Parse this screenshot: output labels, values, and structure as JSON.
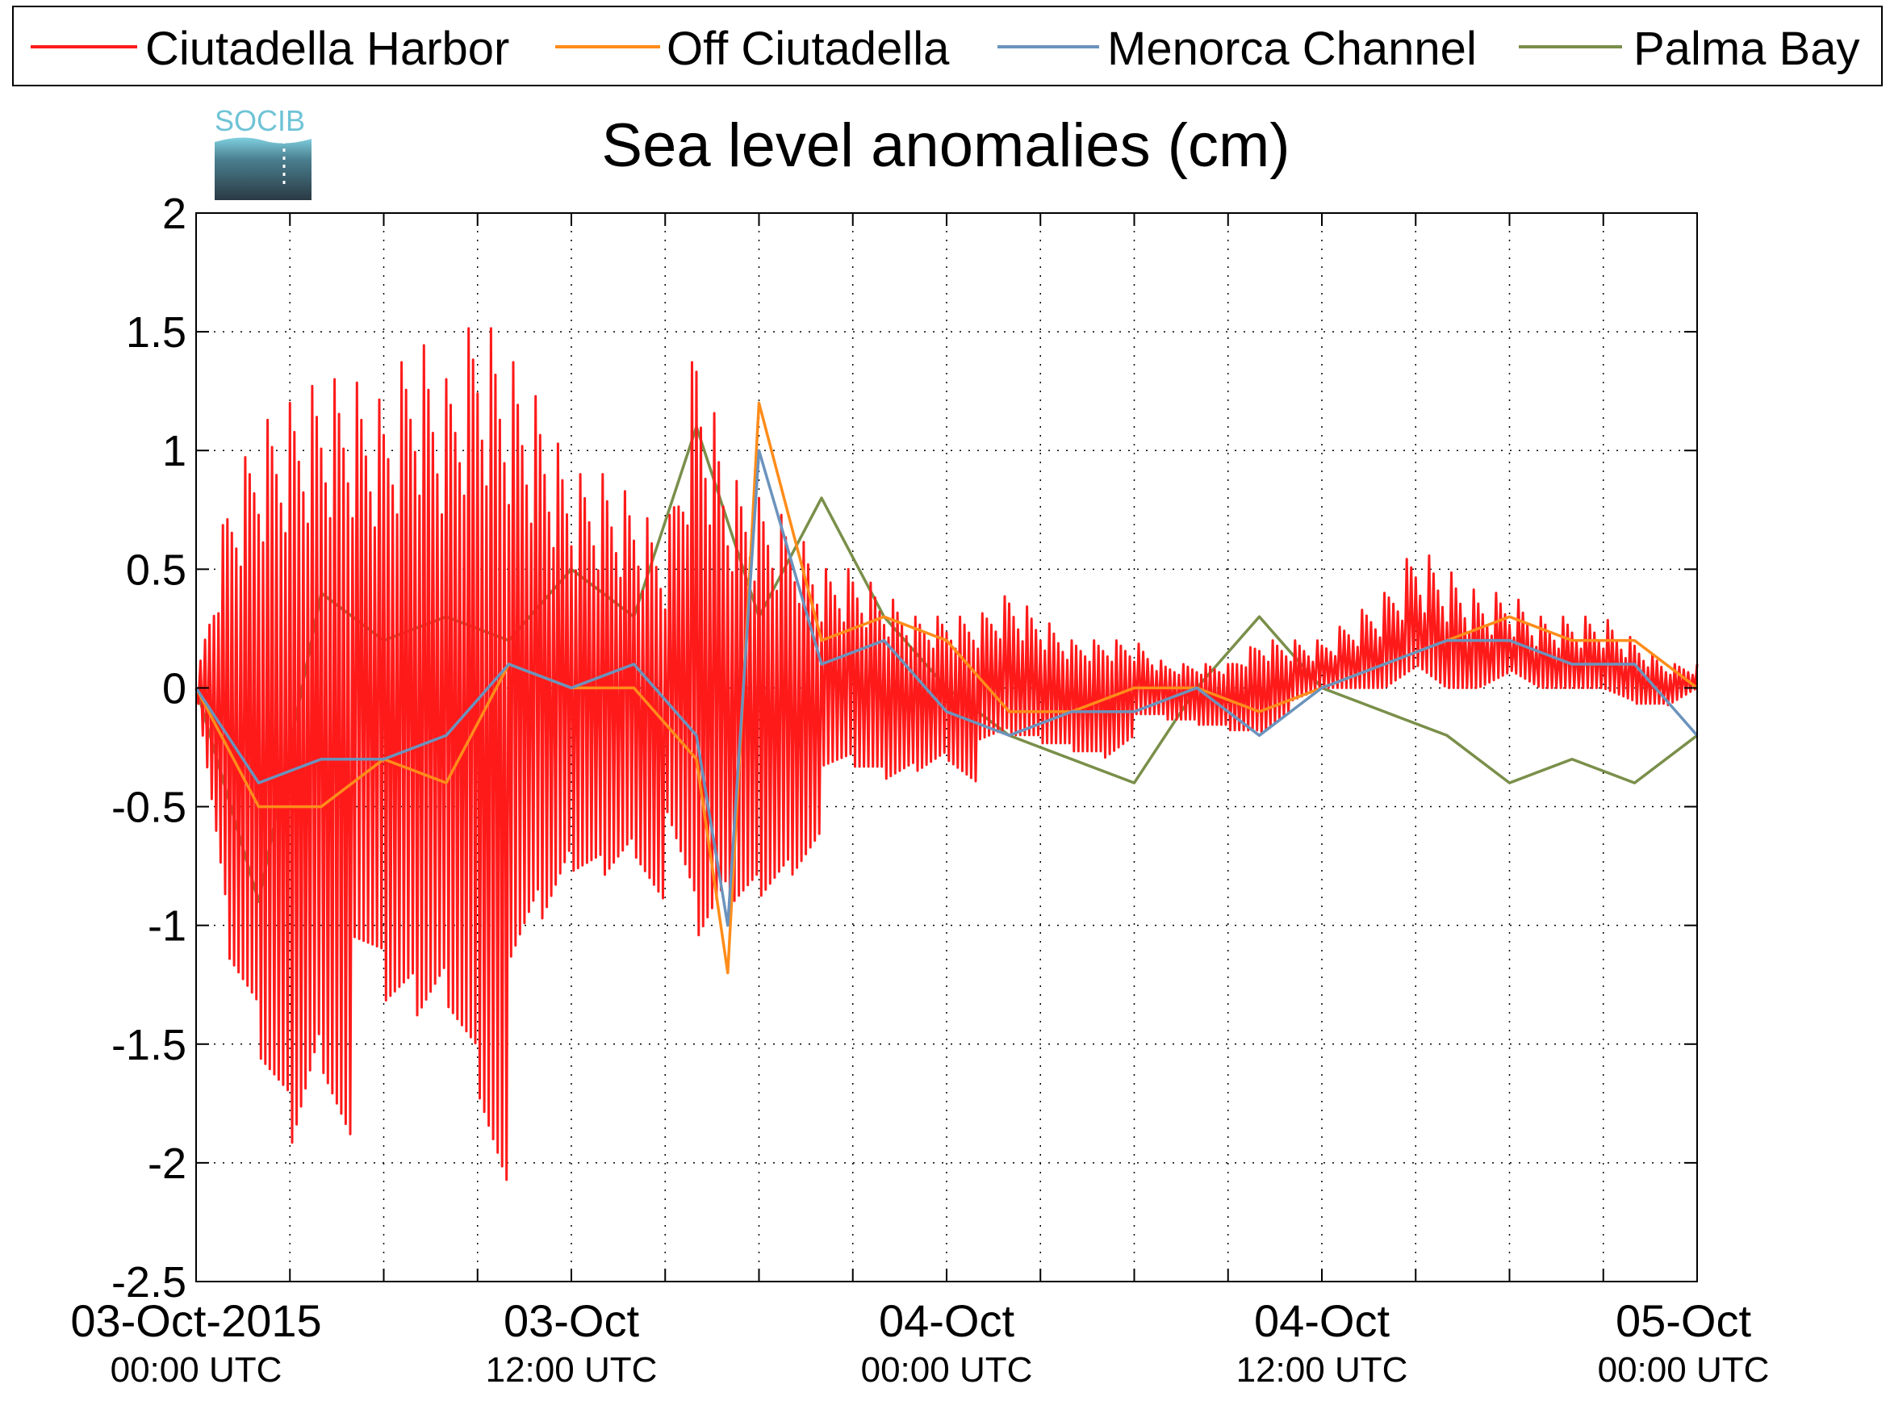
{
  "colors": {
    "ciutadella_harbor": "#ff1a1a",
    "off_ciutadella": "#ff8c1a",
    "menorca_channel": "#6b93bd",
    "palma_bay": "#7a8f4a",
    "logo_accent": "#6fc3d6"
  },
  "logo": {
    "text": "SOCIB"
  },
  "chart_data": {
    "type": "line",
    "title": "Sea level anomalies (cm)",
    "xlabel": "",
    "ylabel": "",
    "x_unit": "date (UTC)",
    "xlim": [
      "2015-10-03 00:00",
      "2015-10-05 00:00"
    ],
    "ylim": [
      -2.5,
      2
    ],
    "yticks": [
      "2",
      "1.5",
      "1",
      "0.5",
      "0",
      "-0.5",
      "-1",
      "-1.5",
      "-2",
      "-2.5"
    ],
    "xticks": [
      {
        "main": "03-Oct-2015",
        "sub": "00:00 UTC"
      },
      {
        "main": "03-Oct",
        "sub": "12:00 UTC"
      },
      {
        "main": "04-Oct",
        "sub": "00:00 UTC"
      },
      {
        "main": "04-Oct",
        "sub": "12:00 UTC"
      },
      {
        "main": "05-Oct",
        "sub": "00:00 UTC"
      }
    ],
    "grid": true,
    "legend_position": "top",
    "series": [
      {
        "name": "Ciutadella Harbor",
        "color": "#ff1a1a",
        "x": [
          "2015-10-03 00:00",
          "2015-10-03 01:00",
          "2015-10-03 02:00",
          "2015-10-03 03:00",
          "2015-10-03 04:00",
          "2015-10-03 05:00",
          "2015-10-03 06:00",
          "2015-10-03 07:00",
          "2015-10-03 08:00",
          "2015-10-03 09:00",
          "2015-10-03 10:00",
          "2015-10-03 11:00",
          "2015-10-03 12:00",
          "2015-10-03 13:00",
          "2015-10-03 14:00",
          "2015-10-03 15:00",
          "2015-10-03 16:00",
          "2015-10-03 17:00",
          "2015-10-03 18:00",
          "2015-10-03 19:00",
          "2015-10-03 20:00",
          "2015-10-03 21:00",
          "2015-10-03 22:00",
          "2015-10-03 23:00",
          "2015-10-04 00:00",
          "2015-10-04 01:00",
          "2015-10-04 02:00",
          "2015-10-04 03:00",
          "2015-10-04 04:00",
          "2015-10-04 05:00",
          "2015-10-04 06:00",
          "2015-10-04 07:00",
          "2015-10-04 08:00",
          "2015-10-04 09:00",
          "2015-10-04 10:00",
          "2015-10-04 11:00",
          "2015-10-04 12:00",
          "2015-10-04 13:00",
          "2015-10-04 14:00",
          "2015-10-04 15:00",
          "2015-10-04 16:00",
          "2015-10-04 17:00",
          "2015-10-04 18:00",
          "2015-10-04 19:00",
          "2015-10-04 20:00",
          "2015-10-04 21:00",
          "2015-10-04 22:00",
          "2015-10-04 23:00",
          "2015-10-05 00:00"
        ],
        "values": [
          0.0,
          0.8,
          -1.7,
          1.2,
          -2.0,
          1.3,
          -2.2,
          1.2,
          -1.0,
          1.5,
          -1.9,
          1.4,
          -2.1,
          1.6,
          -1.5,
          0.9,
          -1.1,
          0.8,
          -1.0,
          0.6,
          -1.6,
          1.5,
          -1.3,
          0.9,
          0.3,
          -0.6,
          0.5,
          -0.5,
          0.3,
          -0.4,
          0.2,
          -0.3,
          0.0,
          -0.3,
          0.2,
          -0.2,
          0.1,
          0.0,
          0.1,
          0.2,
          0.4,
          0.6,
          0.4,
          0.3,
          0.4,
          0.2,
          0.2,
          0.0,
          0.1
        ],
        "envelope_top": [
          0.0,
          0.8,
          1.1,
          1.2,
          1.3,
          1.3,
          1.2,
          1.5,
          1.3,
          1.6,
          1.4,
          1.2,
          0.9,
          0.9,
          0.8,
          0.6,
          1.5,
          0.9,
          0.8,
          0.7,
          0.5,
          0.5,
          0.4,
          0.3,
          0.3,
          0.3,
          0.4,
          0.3,
          0.2,
          0.2,
          0.2,
          0.1,
          0.1,
          0.1,
          0.2,
          0.2,
          0.2,
          0.3,
          0.4,
          0.6,
          0.5,
          0.4,
          0.4,
          0.3,
          0.3,
          0.3,
          0.2,
          0.1,
          0.1
        ],
        "envelope_bottom": [
          0.0,
          -1.7,
          -2.0,
          -2.2,
          -1.6,
          -1.9,
          -2.0,
          -1.8,
          -1.5,
          -1.7,
          -2.1,
          -1.5,
          -1.0,
          -0.9,
          -0.7,
          -0.9,
          -1.6,
          -1.2,
          -1.0,
          -0.8,
          -0.6,
          -0.5,
          -0.5,
          -0.4,
          -0.3,
          -0.4,
          -0.3,
          -0.3,
          -0.3,
          -0.3,
          -0.2,
          -0.2,
          -0.2,
          -0.2,
          -0.2,
          -0.1,
          0.0,
          0.0,
          0.0,
          0.1,
          0.0,
          0.0,
          0.1,
          0.0,
          0.0,
          0.0,
          -0.1,
          -0.1,
          0.0
        ]
      },
      {
        "name": "Off Ciutadella",
        "color": "#ff8c1a",
        "x": [
          "2015-10-03 00:00",
          "2015-10-03 02:00",
          "2015-10-03 04:00",
          "2015-10-03 06:00",
          "2015-10-03 08:00",
          "2015-10-03 10:00",
          "2015-10-03 12:00",
          "2015-10-03 14:00",
          "2015-10-03 16:00",
          "2015-10-03 17:00",
          "2015-10-03 18:00",
          "2015-10-03 20:00",
          "2015-10-03 22:00",
          "2015-10-04 00:00",
          "2015-10-04 02:00",
          "2015-10-04 04:00",
          "2015-10-04 06:00",
          "2015-10-04 08:00",
          "2015-10-04 10:00",
          "2015-10-04 12:00",
          "2015-10-04 14:00",
          "2015-10-04 16:00",
          "2015-10-04 18:00",
          "2015-10-04 20:00",
          "2015-10-04 22:00",
          "2015-10-05 00:00"
        ],
        "values": [
          0.0,
          -0.5,
          -0.5,
          -0.3,
          -0.4,
          0.1,
          0.0,
          0.0,
          -0.3,
          -1.2,
          1.2,
          0.2,
          0.3,
          0.2,
          -0.1,
          -0.1,
          0.0,
          0.0,
          -0.1,
          0.0,
          0.1,
          0.2,
          0.3,
          0.2,
          0.2,
          0.0
        ]
      },
      {
        "name": "Menorca Channel",
        "color": "#6b93bd",
        "x": [
          "2015-10-03 00:00",
          "2015-10-03 02:00",
          "2015-10-03 04:00",
          "2015-10-03 06:00",
          "2015-10-03 08:00",
          "2015-10-03 10:00",
          "2015-10-03 12:00",
          "2015-10-03 14:00",
          "2015-10-03 16:00",
          "2015-10-03 17:00",
          "2015-10-03 18:00",
          "2015-10-03 20:00",
          "2015-10-03 22:00",
          "2015-10-04 00:00",
          "2015-10-04 02:00",
          "2015-10-04 04:00",
          "2015-10-04 06:00",
          "2015-10-04 08:00",
          "2015-10-04 10:00",
          "2015-10-04 12:00",
          "2015-10-04 14:00",
          "2015-10-04 16:00",
          "2015-10-04 18:00",
          "2015-10-04 20:00",
          "2015-10-04 22:00",
          "2015-10-05 00:00"
        ],
        "values": [
          0.0,
          -0.4,
          -0.3,
          -0.3,
          -0.2,
          0.1,
          0.0,
          0.1,
          -0.2,
          -1.0,
          1.0,
          0.1,
          0.2,
          -0.1,
          -0.2,
          -0.1,
          -0.1,
          0.0,
          -0.2,
          0.0,
          0.1,
          0.2,
          0.2,
          0.1,
          0.1,
          -0.2
        ]
      },
      {
        "name": "Palma Bay",
        "color": "#7a8f4a",
        "x": [
          "2015-10-03 00:00",
          "2015-10-03 02:00",
          "2015-10-03 04:00",
          "2015-10-03 06:00",
          "2015-10-03 08:00",
          "2015-10-03 10:00",
          "2015-10-03 12:00",
          "2015-10-03 14:00",
          "2015-10-03 16:00",
          "2015-10-03 18:00",
          "2015-10-03 20:00",
          "2015-10-03 22:00",
          "2015-10-04 00:00",
          "2015-10-04 02:00",
          "2015-10-04 04:00",
          "2015-10-04 06:00",
          "2015-10-04 08:00",
          "2015-10-04 10:00",
          "2015-10-04 12:00",
          "2015-10-04 14:00",
          "2015-10-04 16:00",
          "2015-10-04 18:00",
          "2015-10-04 20:00",
          "2015-10-04 22:00",
          "2015-10-05 00:00"
        ],
        "values": [
          0.0,
          -0.9,
          0.4,
          0.2,
          0.3,
          0.2,
          0.5,
          0.3,
          1.1,
          0.3,
          0.8,
          0.3,
          0.0,
          -0.2,
          -0.3,
          -0.4,
          0.0,
          0.3,
          0.0,
          -0.1,
          -0.2,
          -0.4,
          -0.3,
          -0.4,
          -0.2
        ]
      }
    ]
  }
}
